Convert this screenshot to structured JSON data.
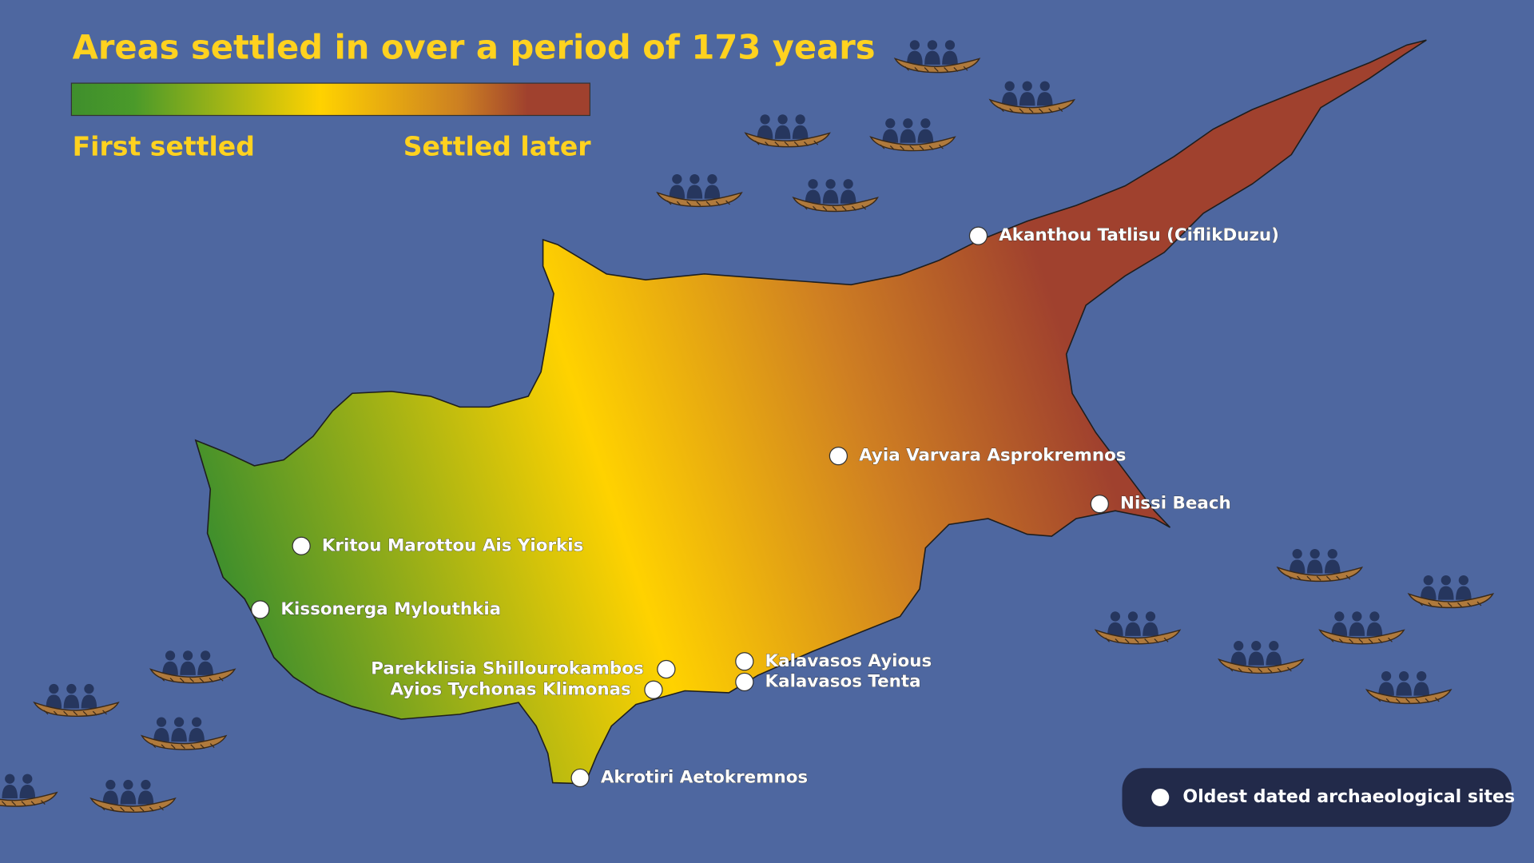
{
  "header": {
    "title": "Areas settled in over a period of 173 years"
  },
  "gradient_legend": {
    "start_label": "First settled",
    "end_label": "Settled later"
  },
  "sites": [
    {
      "name": "Akanthou Tatlisu (CiflikDuzu)"
    },
    {
      "name": "Ayia Varvara Asprokremnos"
    },
    {
      "name": "Nissi Beach"
    },
    {
      "name": "Kritou Marottou Ais Yiorkis"
    },
    {
      "name": "Kissonerga Mylouthkia"
    },
    {
      "name": "Parekklisia Shillourokambos"
    },
    {
      "name": "Ayios Tychonas Klimonas"
    },
    {
      "name": "Kalavasos Ayious"
    },
    {
      "name": "Kalavasos Tenta"
    },
    {
      "name": "Akrotiri Aetokremnos"
    }
  ],
  "key": {
    "label": "Oldest dated archaeological sites"
  }
}
